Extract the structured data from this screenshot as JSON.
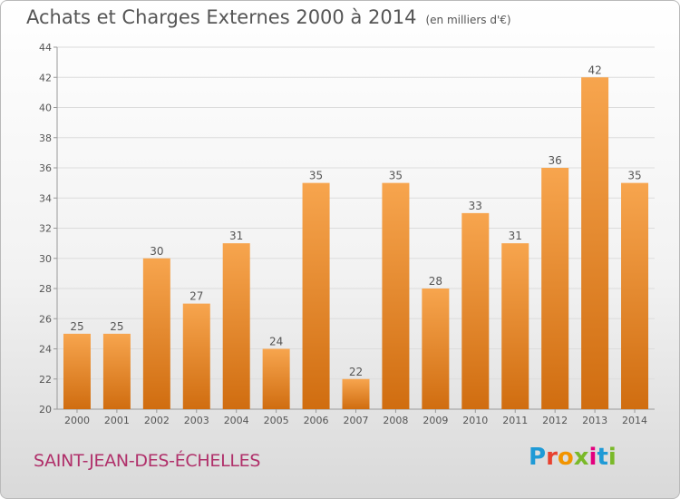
{
  "chart_data": {
    "type": "bar",
    "title": "Achats et Charges Externes 2000 à 2014",
    "subtitle": "(en milliers d'€)",
    "categories": [
      "2000",
      "2001",
      "2002",
      "2003",
      "2004",
      "2005",
      "2006",
      "2007",
      "2008",
      "2009",
      "2010",
      "2011",
      "2012",
      "2013",
      "2014"
    ],
    "values": [
      25,
      25,
      30,
      27,
      31,
      24,
      35,
      22,
      35,
      28,
      33,
      31,
      36,
      42,
      35
    ],
    "ylim": [
      20,
      44
    ],
    "yticks": [
      20,
      22,
      24,
      26,
      28,
      30,
      32,
      34,
      36,
      38,
      40,
      42,
      44
    ],
    "grid": true,
    "bar_color_top": "#f7a54e",
    "bar_color_bottom": "#d06d10"
  },
  "commune": "SAINT-JEAN-DES-ÉCHELLES",
  "brand": {
    "letters": [
      "P",
      "r",
      "o",
      "x",
      "i",
      "t",
      "i"
    ],
    "colors": [
      "#1f9ad6",
      "#e8412f",
      "#f29400",
      "#7ab929",
      "#e3007e",
      "#1f9ad6",
      "#7ab929"
    ]
  }
}
